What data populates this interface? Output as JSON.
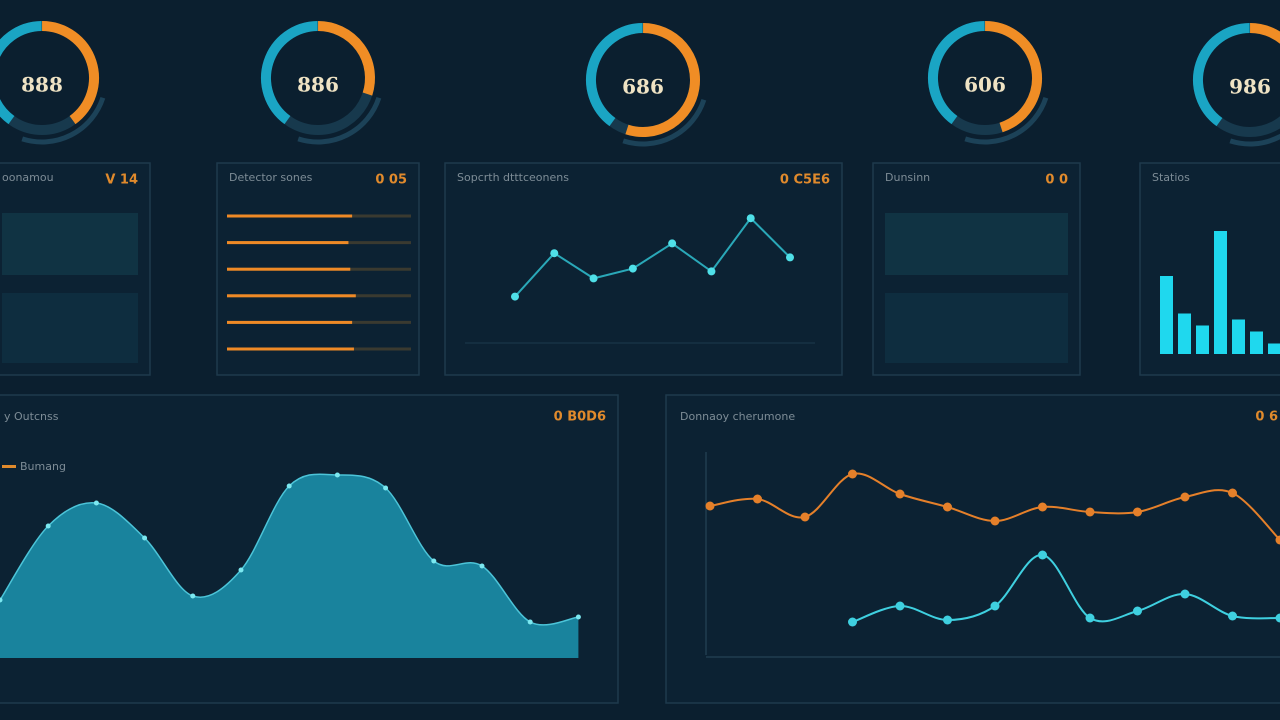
{
  "gauges": [
    {
      "label": "888",
      "value": 40
    },
    {
      "label": "886",
      "value": 30
    },
    {
      "label": "686",
      "value": 55
    },
    {
      "label": "606",
      "value": 45
    },
    {
      "label": "986",
      "value": 28
    }
  ],
  "panels": [
    {
      "title": "oonamou",
      "badge": "V 14"
    },
    {
      "title": "Detector sones",
      "badge": "0 05",
      "chart": {
        "type": "hbar",
        "xlim": [
          0,
          100
        ],
        "values": [
          68,
          66,
          67,
          70,
          68,
          69
        ]
      }
    },
    {
      "title": "Sopcrth dtttceonens",
      "badge": "0 C5E6",
      "chart": {
        "type": "line",
        "ylim": [
          0,
          100
        ],
        "values": [
          31,
          62,
          44,
          51,
          69,
          49,
          87,
          59
        ]
      }
    },
    {
      "title": "Dunsinn",
      "badge": "0 0"
    },
    {
      "title": "Statios",
      "badge": "",
      "chart": {
        "type": "bar",
        "ylim": [
          0,
          100
        ],
        "values": [
          52,
          27,
          19,
          82,
          23,
          15,
          7
        ]
      }
    }
  ],
  "bottom": [
    {
      "title": "y Outcnss",
      "badge": "0 B0D6",
      "legend": "Bumang",
      "chart": {
        "type": "area",
        "ylim": [
          0,
          100
        ],
        "values": [
          29,
          66,
          77.5,
          60,
          31,
          44,
          86,
          91.5,
          85,
          48.5,
          46,
          18,
          20.5
        ]
      }
    },
    {
      "title": "Donnaoy cherumone",
      "badge": "0 6",
      "chart": {
        "type": "multiline",
        "ylim": [
          0,
          100
        ],
        "series": [
          {
            "color": "#e5802a",
            "values": [
              74.5,
              78,
              69,
              90.5,
              80.5,
              74,
              67,
              74,
              71.5,
              71.5,
              79,
              81,
              57.5
            ]
          },
          {
            "color": "#3fd0e0",
            "values": [
              null,
              null,
              null,
              16.5,
              24.5,
              17.5,
              24.5,
              50,
              18.5,
              22,
              30.5,
              19.5,
              18.5
            ]
          }
        ]
      }
    }
  ]
}
